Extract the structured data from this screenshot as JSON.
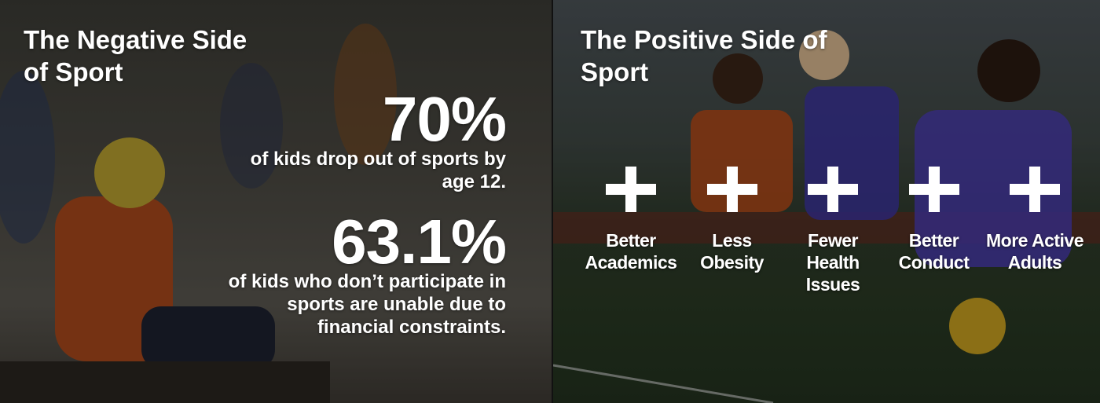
{
  "negative": {
    "title": "The Negative Side of Sport",
    "stats": [
      {
        "value": "70%",
        "text": "of kids drop out of sports by age 12."
      },
      {
        "value": "63.1%",
        "text": "of kids who don’t participate in sports are unable due to financial constraints."
      }
    ]
  },
  "positive": {
    "title": "The Positive Side of Sport",
    "benefits": [
      "Better Academics",
      "Less Obesity",
      "Fewer Health Issues",
      "Better Conduct",
      "More Active Adults"
    ]
  }
}
